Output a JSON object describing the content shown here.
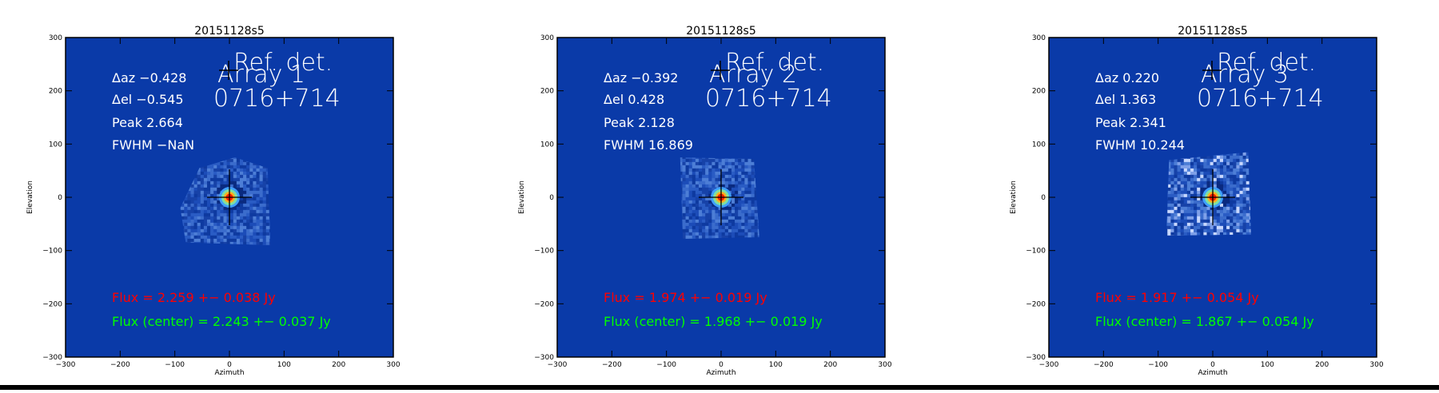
{
  "chart_data": [
    {
      "type": "heatmap",
      "title": "20151128s5",
      "xlabel": "Azimuth",
      "ylabel": "Elevation",
      "xlim": [
        -300,
        300
      ],
      "ylim": [
        -300,
        300
      ],
      "xticks": [
        "-300",
        "-200",
        "-100",
        "0",
        "100",
        "200",
        "300"
      ],
      "yticks": [
        "-300",
        "-200",
        "-100",
        "0",
        "100",
        "200",
        "300"
      ],
      "ref_det_label": "Ref. det.",
      "array_label": "Array 1",
      "source_label": "0716+714",
      "daz": "Δaz −0.428",
      "del": "Δel −0.545",
      "peak": "Peak 2.664",
      "fwhm": "FWHM −NaN",
      "flux": "Flux = 2.259 +− 0.038 Jy",
      "flux_center": "Flux (center) = 2.243 +− 0.037 Jy",
      "ref_det_position": [
        0,
        0
      ],
      "colors": {
        "background": "#0a3aa8",
        "flux": "#ff0000",
        "flux_center": "#00ff00"
      }
    },
    {
      "type": "heatmap",
      "title": "20151128s5",
      "xlabel": "Azimuth",
      "ylabel": "Elevation",
      "xlim": [
        -300,
        300
      ],
      "ylim": [
        -300,
        300
      ],
      "xticks": [
        "-300",
        "-200",
        "-100",
        "0",
        "100",
        "200",
        "300"
      ],
      "yticks": [
        "-300",
        "-200",
        "-100",
        "0",
        "100",
        "200",
        "300"
      ],
      "ref_det_label": "Ref. det.",
      "array_label": "Array 2",
      "source_label": "0716+714",
      "daz": "Δaz −0.392",
      "del": "Δel 0.428",
      "peak": "Peak 2.128",
      "fwhm": "FWHM 16.869",
      "flux": "Flux = 1.974 +− 0.019 Jy",
      "flux_center": "Flux (center) = 1.968 +− 0.019 Jy",
      "ref_det_position": [
        0,
        0
      ],
      "colors": {
        "background": "#0a3aa8",
        "flux": "#ff0000",
        "flux_center": "#00ff00"
      }
    },
    {
      "type": "heatmap",
      "title": "20151128s5",
      "xlabel": "Azimuth",
      "ylabel": "Elevation",
      "xlim": [
        -300,
        300
      ],
      "ylim": [
        -300,
        300
      ],
      "xticks": [
        "-300",
        "-200",
        "-100",
        "0",
        "100",
        "200",
        "300"
      ],
      "yticks": [
        "-300",
        "-200",
        "-100",
        "0",
        "100",
        "200",
        "300"
      ],
      "ref_det_label": "Ref. det.",
      "array_label": "Array 3",
      "source_label": "0716+714",
      "daz": "Δaz 0.220",
      "del": "Δel 1.363",
      "peak": "Peak 2.341",
      "fwhm": "FWHM 10.244",
      "flux": "Flux = 1.917 +− 0.054 Jy",
      "flux_center": "Flux (center) = 1.867 +− 0.054 Jy",
      "ref_det_position": [
        0,
        0
      ],
      "colors": {
        "background": "#0a3aa8",
        "flux": "#ff0000",
        "flux_center": "#00ff00"
      }
    }
  ]
}
